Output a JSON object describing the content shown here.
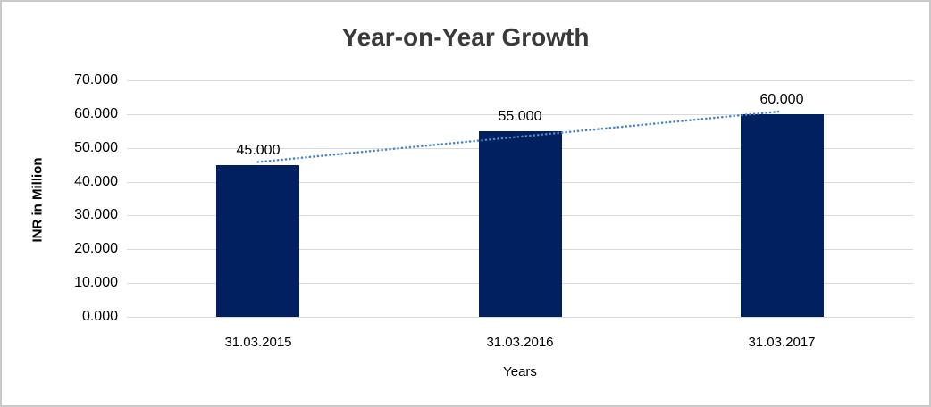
{
  "chart_data": {
    "type": "bar",
    "title": "Year-on-Year Growth",
    "xlabel": "Years",
    "ylabel": "INR in Million",
    "categories": [
      "31.03.2015",
      "31.03.2016",
      "31.03.2017"
    ],
    "values": [
      45,
      55,
      60
    ],
    "data_labels": [
      "45.000",
      "55.000",
      "60.000"
    ],
    "y_ticks": [
      "70.000",
      "60.000",
      "50.000",
      "40.000",
      "30.000",
      "20.000",
      "10.000",
      "0.000"
    ],
    "ylim": [
      0,
      70
    ],
    "grid": true,
    "legend": "none",
    "trendline": "dotted linear trendline across bar tops",
    "colors": {
      "bar": "#002060",
      "trendline": "#4a86c8",
      "gridline": "#d9d9d9",
      "frame_border": "#c9c9c9",
      "title_text": "#3a3a3a",
      "label_text": "#000000",
      "background": "#ffffff"
    }
  }
}
